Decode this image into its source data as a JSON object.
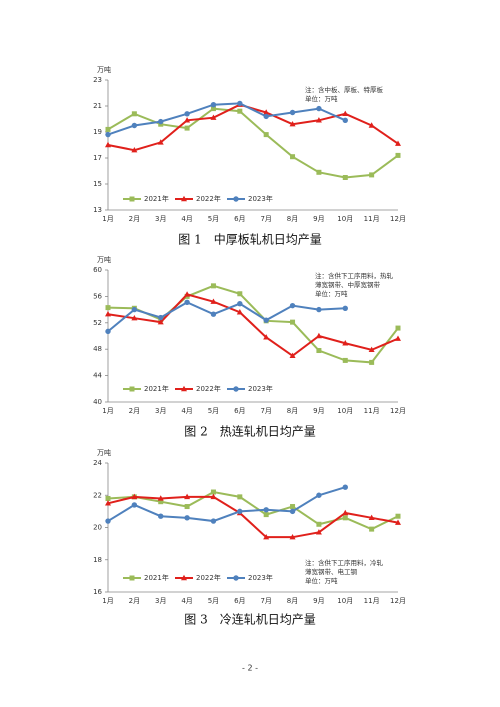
{
  "chart_data": [
    {
      "type": "line",
      "title": "图 1　中厚板轧机日均产量",
      "y_label": "万吨",
      "note": [
        "注：含中板、厚板、特厚板",
        "单位：万吨"
      ],
      "categories": [
        "1月",
        "2月",
        "3月",
        "4月",
        "5月",
        "6月",
        "7月",
        "8月",
        "9月",
        "10月",
        "11月",
        "12月"
      ],
      "ylim": [
        13,
        23
      ],
      "yticks": [
        13,
        15,
        17,
        19,
        21,
        23
      ],
      "legend": "lower left",
      "series": [
        {
          "name": "2021年",
          "color": "#9bbb59",
          "marker": "square",
          "values": [
            19.2,
            20.4,
            19.6,
            19.3,
            20.8,
            20.6,
            18.8,
            17.1,
            15.9,
            15.5,
            15.7,
            17.2
          ]
        },
        {
          "name": "2022年",
          "color": "#e0201b",
          "marker": "triangle",
          "values": [
            18.0,
            17.6,
            18.2,
            19.9,
            20.1,
            21.1,
            20.5,
            19.6,
            19.9,
            20.4,
            19.5,
            18.1
          ]
        },
        {
          "name": "2023年",
          "color": "#4f81bd",
          "marker": "circle",
          "values": [
            18.8,
            19.5,
            19.8,
            20.4,
            21.1,
            21.2,
            20.2,
            20.5,
            20.8,
            19.9,
            null,
            null
          ]
        }
      ]
    },
    {
      "type": "line",
      "title": "图 2　热连轧机日均产量",
      "y_label": "万吨",
      "note": [
        "注：含供下工序用料，热轧",
        "薄宽钢带、中厚宽钢带",
        "单位：万吨"
      ],
      "categories": [
        "1月",
        "2月",
        "3月",
        "4月",
        "5月",
        "6月",
        "7月",
        "8月",
        "9月",
        "10月",
        "11月",
        "12月"
      ],
      "ylim": [
        40,
        60
      ],
      "yticks": [
        40,
        44,
        48,
        52,
        56,
        60
      ],
      "legend": "lower left",
      "series": [
        {
          "name": "2021年",
          "color": "#9bbb59",
          "marker": "square",
          "values": [
            54.3,
            54.2,
            52.5,
            56.0,
            57.6,
            56.4,
            52.3,
            52.1,
            47.8,
            46.3,
            46.0,
            51.2
          ]
        },
        {
          "name": "2022年",
          "color": "#e0201b",
          "marker": "triangle",
          "values": [
            53.3,
            52.7,
            52.1,
            56.3,
            55.2,
            53.6,
            49.8,
            47.0,
            50.0,
            48.9,
            47.9,
            49.6
          ]
        },
        {
          "name": "2023年",
          "color": "#4f81bd",
          "marker": "circle",
          "values": [
            50.7,
            54.0,
            52.8,
            55.1,
            53.3,
            54.9,
            52.4,
            54.6,
            54.0,
            54.2,
            null,
            null
          ]
        }
      ]
    },
    {
      "type": "line",
      "title": "图 3　冷连轧机日均产量",
      "y_label": "万吨",
      "note": [
        "注：含供下工序用料，冷轧",
        "薄宽钢带、电工钢",
        "单位：万吨"
      ],
      "categories": [
        "1月",
        "2月",
        "3月",
        "4月",
        "5月",
        "6月",
        "7月",
        "8月",
        "9月",
        "10月",
        "11月",
        "12月"
      ],
      "ylim": [
        16,
        24
      ],
      "yticks": [
        16,
        18,
        20,
        22,
        24
      ],
      "legend": "lower left",
      "series": [
        {
          "name": "2021年",
          "color": "#9bbb59",
          "marker": "square",
          "values": [
            21.8,
            21.9,
            21.6,
            21.3,
            22.2,
            21.9,
            20.8,
            21.3,
            20.2,
            20.6,
            19.9,
            20.7
          ]
        },
        {
          "name": "2022年",
          "color": "#e0201b",
          "marker": "triangle",
          "values": [
            21.5,
            21.9,
            21.8,
            21.9,
            21.9,
            20.9,
            19.4,
            19.4,
            19.7,
            20.9,
            20.6,
            20.3
          ]
        },
        {
          "name": "2023年",
          "color": "#4f81bd",
          "marker": "circle",
          "values": [
            20.4,
            21.4,
            20.7,
            20.6,
            20.4,
            21.0,
            21.1,
            21.0,
            22.0,
            22.5,
            null,
            null
          ]
        }
      ]
    }
  ],
  "page_number": "- 2 -"
}
